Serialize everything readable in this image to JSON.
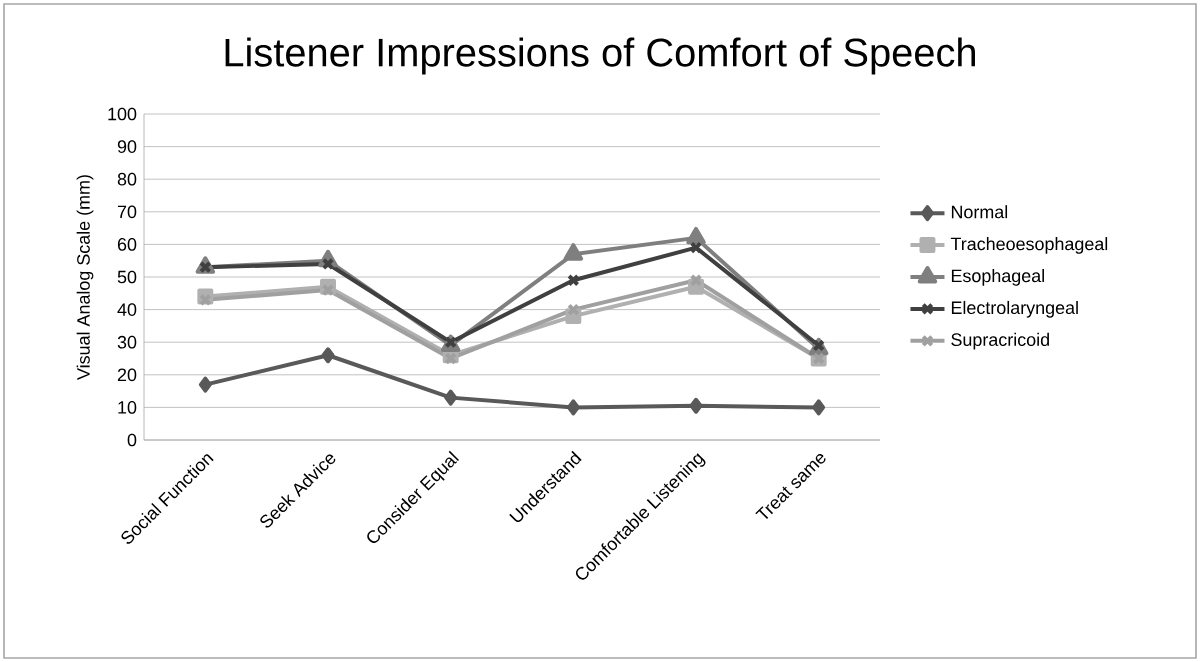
{
  "chart_data": {
    "type": "line",
    "title": "Listener Impressions of Comfort of Speech",
    "ylabel": "Visual Analog Scale (mm)",
    "categories": [
      "Social Function",
      "Seek Advice",
      "Consider Equal",
      "Understand",
      "Comfortable Listening",
      "Treat same"
    ],
    "series": [
      {
        "name": "Normal",
        "color": "#595959",
        "marker": "diamond",
        "values": [
          17,
          26,
          13,
          10,
          10.5,
          10
        ]
      },
      {
        "name": "Tracheoesophageal",
        "color": "#b0b0b0",
        "marker": "square",
        "values": [
          44,
          47,
          26,
          38,
          47,
          25
        ]
      },
      {
        "name": "Esophageal",
        "color": "#7f7f7f",
        "marker": "triangle",
        "values": [
          53,
          55,
          29,
          57,
          62,
          28
        ]
      },
      {
        "name": "Electrolaryngeal",
        "color": "#404040",
        "marker": "cross",
        "values": [
          53,
          54,
          30,
          49,
          59,
          29
        ]
      },
      {
        "name": "Supracricoid",
        "color": "#a0a0a0",
        "marker": "cross",
        "values": [
          43,
          46,
          25,
          40,
          49,
          25
        ]
      }
    ],
    "ylim": [
      0,
      100
    ],
    "yticks": [
      0,
      10,
      20,
      30,
      40,
      50,
      60,
      70,
      80,
      90,
      100
    ],
    "grid": "y",
    "legend": "right",
    "line_style": "solid"
  }
}
